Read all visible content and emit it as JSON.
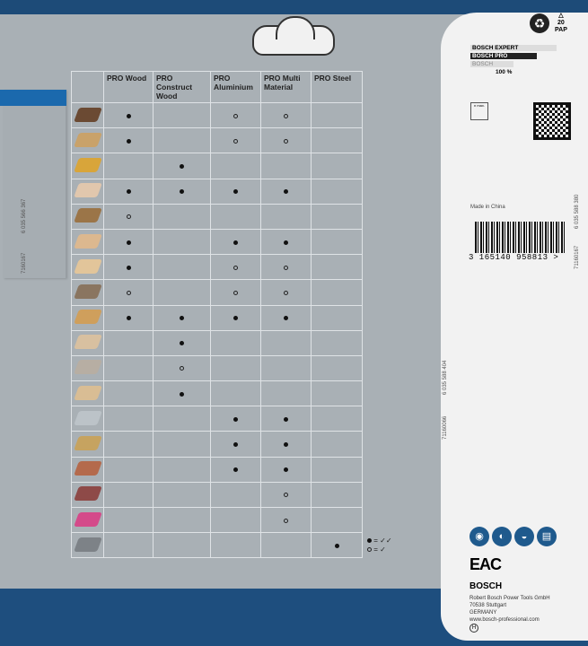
{
  "columns": [
    "",
    "PRO Wood",
    "PRO Construct Wood",
    "PRO Aluminium",
    "PRO Multi Material",
    "PRO Steel"
  ],
  "materials": [
    {
      "color": "#6b4a33",
      "marks": [
        "full",
        "",
        "ring",
        "ring",
        ""
      ]
    },
    {
      "color": "#c9a26a",
      "marks": [
        "full",
        "",
        "ring",
        "ring",
        ""
      ]
    },
    {
      "color": "#d8a53a",
      "marks": [
        "",
        "full",
        "",
        "",
        ""
      ]
    },
    {
      "color": "#e1c7ad",
      "marks": [
        "full",
        "full",
        "full",
        "full",
        ""
      ]
    },
    {
      "color": "#9b7548",
      "marks": [
        "ring",
        "",
        "",
        "",
        ""
      ]
    },
    {
      "color": "#dcb88f",
      "marks": [
        "full",
        "",
        "full",
        "full",
        ""
      ]
    },
    {
      "color": "#e2c59a",
      "marks": [
        "full",
        "",
        "ring",
        "ring",
        ""
      ]
    },
    {
      "color": "#8a7560",
      "marks": [
        "ring",
        "",
        "ring",
        "ring",
        ""
      ]
    },
    {
      "color": "#cf9f5c",
      "marks": [
        "full",
        "full",
        "full",
        "full",
        ""
      ]
    },
    {
      "color": "#d8c0a0",
      "marks": [
        "",
        "full",
        "",
        "",
        ""
      ]
    },
    {
      "color": "#b7aea3",
      "marks": [
        "",
        "ring",
        "",
        "",
        ""
      ]
    },
    {
      "color": "#d9bd94",
      "marks": [
        "",
        "full",
        "",
        "",
        ""
      ]
    },
    {
      "color": "#bcc3c8",
      "marks": [
        "",
        "",
        "full",
        "full",
        ""
      ]
    },
    {
      "color": "#c6a360",
      "marks": [
        "",
        "",
        "full",
        "full",
        ""
      ]
    },
    {
      "color": "#b46a4c",
      "marks": [
        "",
        "",
        "full",
        "full",
        ""
      ]
    },
    {
      "color": "#8e4a48",
      "marks": [
        "",
        "",
        "",
        "ring",
        ""
      ]
    },
    {
      "color": "#d44a8a",
      "marks": [
        "",
        "",
        "",
        "ring",
        ""
      ]
    },
    {
      "color": "#7d8287",
      "marks": [
        "",
        "",
        "",
        "",
        "full"
      ]
    }
  ],
  "legend": {
    "full": "= ✓✓",
    "ring": "= ✓"
  },
  "left_codes": {
    "a": "6 035 566 367",
    "b": "7160167"
  },
  "middle_codes": {
    "a": "6 035 588 404",
    "b": "71160066"
  },
  "right_codes": {
    "a": "6 035 588 380",
    "b": "71160167"
  },
  "rating": {
    "expert": "BOSCH EXPERT",
    "pro": "BOSCH PRO",
    "bosch": "BOSCH",
    "percent": "100 %"
  },
  "recycling": {
    "code": "20",
    "label": "PAP"
  },
  "gauge": {
    "label": "n max."
  },
  "made_in": "Made in China",
  "barcode": "3 165140 958813 >",
  "eac": "EAC",
  "brand": "BOSCH",
  "address": [
    "Robert Bosch Power Tools GmbH",
    "70538 Stuttgart",
    "GERMANY",
    "www.bosch-professional.com"
  ],
  "colors": {
    "blue": "#1e4e7e",
    "accent": "#1b69ad",
    "panel": "#a9b0b5"
  }
}
